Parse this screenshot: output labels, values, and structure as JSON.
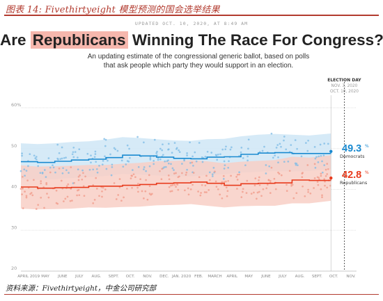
{
  "figure_caption": "图表 14: Fivethirtyeight 模型预测的国会选举结果",
  "updated": "UPDATED OCT. 10, 2020, AT 8:49 AM",
  "title": {
    "prefix": "Are ",
    "highlight": "Republicans",
    "suffix": " Winning The Race For Congress?"
  },
  "subtitle": "An updating estimate of the congressional generic ballot, based on polls that ask people which party they would support in an election.",
  "source": "资料来源：Fivethirtyeight，中金公司研究部",
  "colors": {
    "democrats": "#1a8ad0",
    "dem_band": "#cfe6f6",
    "republicans": "#e83a1c",
    "rep_band": "#f8cfc6"
  },
  "chart_data": {
    "type": "line",
    "title": "Are Republicans Winning The Race For Congress?",
    "ylabel": "",
    "ylim": [
      20,
      60
    ],
    "y_ticks": [
      20,
      30,
      40,
      50,
      60
    ],
    "y_tick_labels": [
      "20",
      "30",
      "40",
      "50",
      "60%"
    ],
    "x_ticks": [
      {
        "label": "APRIL 2019",
        "date": "2019-04-15"
      },
      {
        "label": "MAY",
        "date": "2019-05-15"
      },
      {
        "label": "JUNE",
        "date": "2019-06-15"
      },
      {
        "label": "JULY",
        "date": "2019-07-15"
      },
      {
        "label": "AUG.",
        "date": "2019-08-15"
      },
      {
        "label": "SEPT.",
        "date": "2019-09-15"
      },
      {
        "label": "OCT.",
        "date": "2019-10-15"
      },
      {
        "label": "NOV.",
        "date": "2019-11-15"
      },
      {
        "label": "DEC.",
        "date": "2019-12-15"
      },
      {
        "label": "JAN. 2020",
        "date": "2020-01-15"
      },
      {
        "label": "FEB.",
        "date": "2020-02-15"
      },
      {
        "label": "MARCH",
        "date": "2020-03-15"
      },
      {
        "label": "APRIL",
        "date": "2020-04-15"
      },
      {
        "label": "MAY",
        "date": "2020-05-15"
      },
      {
        "label": "JUNE",
        "date": "2020-06-15"
      },
      {
        "label": "JULY",
        "date": "2020-07-15"
      },
      {
        "label": "AUG.",
        "date": "2020-08-15"
      },
      {
        "label": "SEPT.",
        "date": "2020-09-15"
      },
      {
        "label": "OCT.",
        "date": "2020-10-15"
      },
      {
        "label": "NOV.",
        "date": "2020-11-15"
      }
    ],
    "xlim": [
      "2019-04-01",
      "2020-11-25"
    ],
    "today": {
      "date": "2020-10-10",
      "label": "OCT. 10, 2020"
    },
    "election_day": {
      "date": "2020-11-03",
      "label": "ELECTION DAY",
      "sublabel": "NOV. 3, 2020"
    },
    "dates": [
      "2019-04-01",
      "2019-05-01",
      "2019-06-01",
      "2019-07-01",
      "2019-08-01",
      "2019-09-01",
      "2019-10-01",
      "2019-11-01",
      "2019-12-01",
      "2020-01-01",
      "2020-02-01",
      "2020-03-01",
      "2020-04-01",
      "2020-05-01",
      "2020-06-01",
      "2020-07-01",
      "2020-08-01",
      "2020-09-01",
      "2020-10-10"
    ],
    "series": [
      {
        "name": "Democrats",
        "final_label": "49.3%",
        "values": [
          46.8,
          46.6,
          46.9,
          47.2,
          47.4,
          47.8,
          48.4,
          48.2,
          47.9,
          47.6,
          47.5,
          47.9,
          48.0,
          48.6,
          48.9,
          49.0,
          48.8,
          48.8,
          49.3
        ],
        "band_low": [
          42.5,
          42.3,
          42.5,
          42.8,
          43.0,
          43.3,
          43.8,
          43.6,
          43.4,
          43.2,
          43.2,
          43.5,
          43.7,
          44.1,
          44.3,
          44.5,
          44.4,
          44.5,
          45.0
        ],
        "band_high": [
          51.3,
          51.1,
          51.3,
          51.6,
          51.8,
          52.2,
          52.8,
          52.6,
          52.3,
          52.0,
          51.9,
          52.3,
          52.4,
          53.0,
          53.4,
          53.6,
          53.4,
          53.2,
          53.7
        ]
      },
      {
        "name": "Republicans",
        "final_label": "42.8%",
        "values": [
          40.6,
          40.3,
          40.4,
          40.5,
          40.8,
          40.8,
          41.0,
          41.2,
          41.5,
          41.6,
          41.8,
          41.5,
          41.0,
          41.4,
          41.5,
          41.6,
          42.3,
          42.2,
          42.8
        ],
        "band_low": [
          35.3,
          35.1,
          35.2,
          35.3,
          35.6,
          35.5,
          35.7,
          35.8,
          36.1,
          36.2,
          36.4,
          36.0,
          35.6,
          35.9,
          36.0,
          36.0,
          36.6,
          36.6,
          37.2
        ],
        "band_high": [
          45.9,
          45.6,
          45.7,
          45.8,
          46.0,
          46.0,
          46.3,
          46.5,
          46.9,
          47.0,
          47.2,
          46.9,
          46.4,
          46.8,
          47.0,
          47.2,
          48.0,
          47.8,
          48.4
        ]
      }
    ]
  }
}
